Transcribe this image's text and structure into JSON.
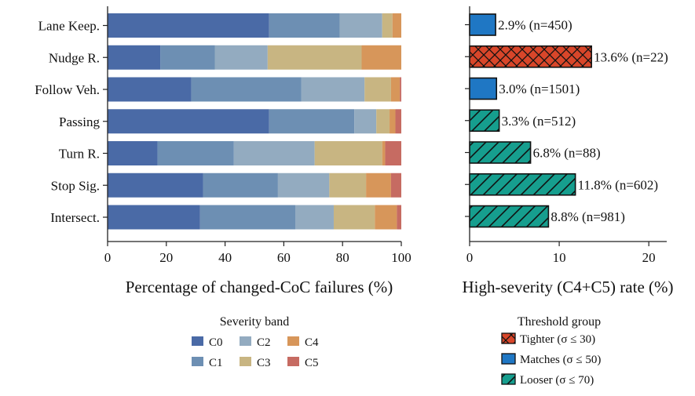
{
  "chart_data": [
    {
      "type": "bar",
      "orientation": "horizontal",
      "stacked": true,
      "xlabel": "Percentage of changed-CoC failures (%)",
      "xlim": [
        0,
        100
      ],
      "xticks": [
        "0",
        "20",
        "40",
        "60",
        "80",
        "100"
      ],
      "categories": [
        "Lane Keep.",
        "Nudge R.",
        "Follow Veh.",
        "Passing",
        "Turn R.",
        "Stop Sig.",
        "Intersect."
      ],
      "series": [
        {
          "name": "C0",
          "color": "#4a6aa6",
          "values": [
            55.0,
            18.0,
            28.5,
            55.0,
            17.0,
            32.5,
            31.5
          ]
        },
        {
          "name": "C1",
          "color": "#6d8fb3",
          "values": [
            24.0,
            18.5,
            37.5,
            29.0,
            26.0,
            25.5,
            32.5
          ]
        },
        {
          "name": "C2",
          "color": "#93abc0",
          "values": [
            14.5,
            18.0,
            21.5,
            7.5,
            27.5,
            17.5,
            13.0
          ]
        },
        {
          "name": "C3",
          "color": "#c8b582",
          "values": [
            3.5,
            32.0,
            9.0,
            4.5,
            23.0,
            12.5,
            14.0
          ]
        },
        {
          "name": "C4",
          "color": "#d7965a",
          "values": [
            3.0,
            13.5,
            3.0,
            2.0,
            1.0,
            8.5,
            7.5
          ]
        },
        {
          "name": "C5",
          "color": "#c66b62",
          "values": [
            0.0,
            0.0,
            0.5,
            2.0,
            5.5,
            3.5,
            1.5
          ]
        }
      ],
      "legend": {
        "title": "Severity band",
        "placement": "bottom"
      }
    },
    {
      "type": "bar",
      "orientation": "horizontal",
      "xlabel": "High-severity (C4+C5) rate (%)",
      "xlim": [
        0,
        22
      ],
      "xticks": [
        "0",
        "10",
        "20"
      ],
      "categories": [
        "Lane Keep.",
        "Nudge R.",
        "Follow Veh.",
        "Passing",
        "Turn R.",
        "Stop Sig.",
        "Intersect."
      ],
      "values": [
        2.9,
        13.6,
        3.0,
        3.3,
        6.8,
        11.8,
        8.8
      ],
      "groups": [
        "Matches",
        "Tighter",
        "Matches",
        "Looser",
        "Looser",
        "Looser",
        "Looser"
      ],
      "data_labels": [
        "2.9% (n=450)",
        "13.6% (n=22)",
        "3.0% (n=1501)",
        "3.3% (n=512)",
        "6.8% (n=88)",
        "11.8% (n=602)",
        "8.8% (n=981)"
      ],
      "legend": {
        "title": "Threshold group",
        "placement": "bottom",
        "items": [
          {
            "key": "Tighter",
            "label": "Tighter (σ ≤ 30)",
            "color": "#d8462a",
            "hatch": "crosshatch"
          },
          {
            "key": "Matches",
            "label": "Matches (σ ≤ 50)",
            "color": "#1f77c4",
            "hatch": "none"
          },
          {
            "key": "Looser",
            "label": "Looser (σ ≤ 70)",
            "color": "#169e8e",
            "hatch": "diagonal"
          }
        ]
      }
    }
  ]
}
